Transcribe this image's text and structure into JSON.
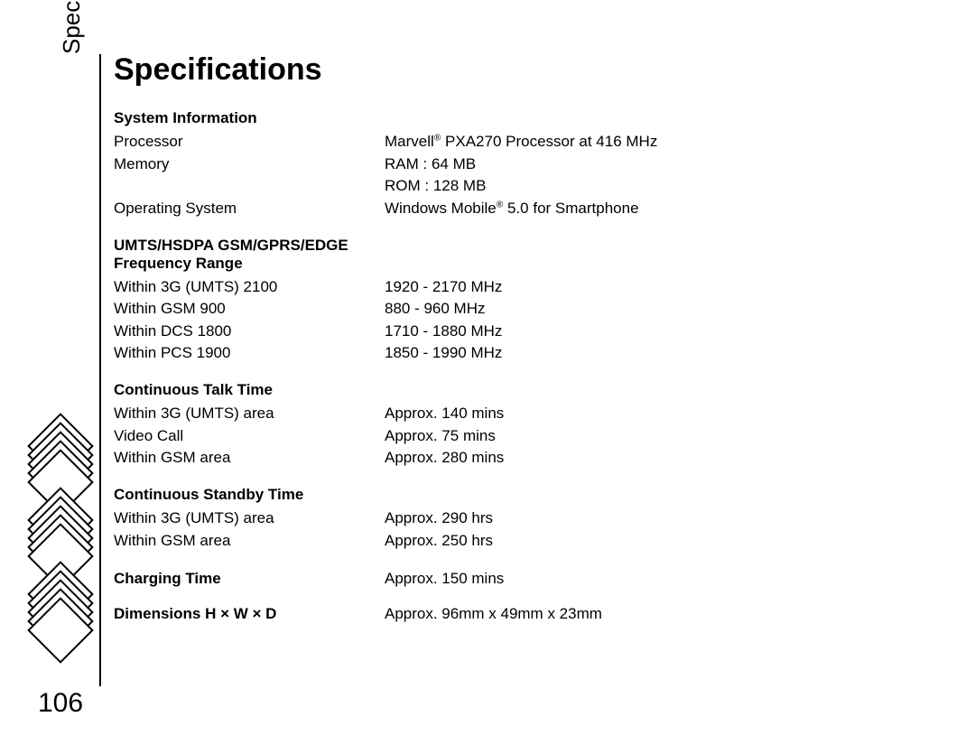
{
  "sideLabel": "Specifications",
  "title": "Specifications",
  "pageNumber": "106",
  "sections": {
    "systemInfo": {
      "heading": "System Information",
      "rows": [
        {
          "label": "Processor",
          "value": "Marvell<sup>®</sup> PXA270 Processor at 416 MHz"
        },
        {
          "label": "Memory",
          "value": "RAM : 64 MB<br>ROM : 128 MB"
        },
        {
          "label": "Operating System",
          "value": "Windows Mobile<sup>®</sup> 5.0 for Smartphone"
        }
      ]
    },
    "freq": {
      "heading": "UMTS/HSDPA  GSM/GPRS/EDGE Frequency Range",
      "rows": [
        {
          "label": "Within 3G (UMTS) 2100",
          "value": "1920 - 2170 MHz"
        },
        {
          "label": "Within GSM 900",
          "value": "880 - 960 MHz"
        },
        {
          "label": "Within DCS 1800",
          "value": "1710 - 1880 MHz"
        },
        {
          "label": "Within PCS 1900",
          "value": "1850 - 1990 MHz"
        }
      ]
    },
    "talk": {
      "heading": "Continuous Talk Time",
      "rows": [
        {
          "label": "Within 3G (UMTS) area",
          "value": "Approx. 140 mins"
        },
        {
          "label": "Video Call",
          "value": "Approx. 75 mins"
        },
        {
          "label": "Within GSM area",
          "value": "Approx. 280 mins"
        }
      ]
    },
    "standby": {
      "heading": "Continuous Standby Time",
      "rows": [
        {
          "label": "Within 3G (UMTS) area",
          "value": "Approx. 290 hrs"
        },
        {
          "label": "Within GSM area",
          "value": "Approx. 250 hrs"
        }
      ]
    },
    "charging": {
      "heading": "Charging Time",
      "value": "Approx. 150 mins"
    },
    "dimensions": {
      "heading": "Dimensions H × W × D",
      "value": "Approx. 96mm x 49mm x 23mm"
    }
  }
}
